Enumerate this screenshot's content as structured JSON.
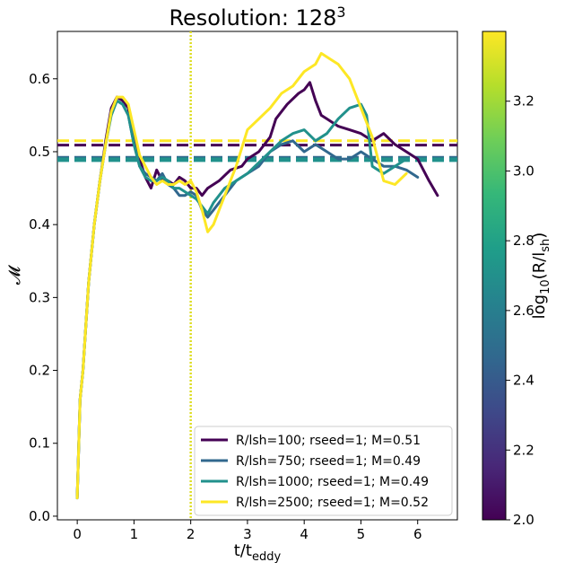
{
  "chart_data": {
    "type": "line",
    "title": "Resolution: 128",
    "title_superscript": "3",
    "xlabel_main": "t/t",
    "xlabel_sub": "eddy",
    "ylabel": "𝓜",
    "xlim": [
      -0.35,
      6.7
    ],
    "ylim": [
      -0.005,
      0.665
    ],
    "xticks": [
      0,
      1,
      2,
      3,
      4,
      5,
      6
    ],
    "yticks": [
      0.0,
      0.1,
      0.2,
      0.3,
      0.4,
      0.5,
      0.6
    ],
    "ytick_labels": [
      "0.0",
      "0.1",
      "0.2",
      "0.3",
      "0.4",
      "0.5",
      "0.6"
    ],
    "vline": {
      "x": 2.0,
      "color": "#dddd22",
      "style": "dotted"
    },
    "legend_position": "lower-right",
    "series": [
      {
        "name": "R/lsh=100; rseed=1; M=0.51",
        "color": "#440154",
        "mean": 0.509,
        "x": [
          0,
          0.05,
          0.1,
          0.2,
          0.3,
          0.4,
          0.5,
          0.6,
          0.7,
          0.8,
          0.9,
          1.0,
          1.1,
          1.2,
          1.3,
          1.4,
          1.5,
          1.6,
          1.7,
          1.8,
          1.9,
          2.0,
          2.1,
          2.2,
          2.3,
          2.5,
          2.7,
          2.9,
          3.0,
          3.2,
          3.4,
          3.5,
          3.7,
          3.9,
          4.0,
          4.1,
          4.2,
          4.3,
          4.4,
          4.5,
          4.6,
          4.8,
          5.0,
          5.2,
          5.4,
          5.6,
          5.8,
          6.0,
          6.2,
          6.35
        ],
        "y": [
          0.025,
          0.16,
          0.2,
          0.32,
          0.4,
          0.46,
          0.515,
          0.56,
          0.575,
          0.57,
          0.56,
          0.52,
          0.49,
          0.465,
          0.45,
          0.475,
          0.46,
          0.46,
          0.455,
          0.465,
          0.46,
          0.45,
          0.45,
          0.44,
          0.45,
          0.46,
          0.475,
          0.48,
          0.49,
          0.5,
          0.52,
          0.545,
          0.565,
          0.58,
          0.585,
          0.595,
          0.57,
          0.55,
          0.545,
          0.54,
          0.535,
          0.53,
          0.525,
          0.515,
          0.525,
          0.51,
          0.5,
          0.49,
          0.46,
          0.44
        ]
      },
      {
        "name": "R/lsh=750; rseed=1; M=0.49",
        "color": "#31688e",
        "mean": 0.491,
        "x": [
          0,
          0.05,
          0.1,
          0.2,
          0.3,
          0.4,
          0.5,
          0.6,
          0.7,
          0.8,
          0.9,
          1.0,
          1.1,
          1.2,
          1.3,
          1.4,
          1.5,
          1.6,
          1.7,
          1.8,
          1.9,
          2.0,
          2.1,
          2.2,
          2.3,
          2.4,
          2.6,
          2.8,
          3.0,
          3.2,
          3.4,
          3.6,
          3.8,
          4.0,
          4.2,
          4.4,
          4.6,
          4.8,
          5.0,
          5.2,
          5.4,
          5.6,
          5.8,
          6.0
        ],
        "y": [
          0.025,
          0.16,
          0.2,
          0.32,
          0.4,
          0.46,
          0.51,
          0.555,
          0.57,
          0.565,
          0.55,
          0.51,
          0.48,
          0.47,
          0.465,
          0.46,
          0.47,
          0.455,
          0.45,
          0.44,
          0.44,
          0.445,
          0.44,
          0.42,
          0.41,
          0.42,
          0.44,
          0.46,
          0.47,
          0.48,
          0.5,
          0.51,
          0.515,
          0.5,
          0.51,
          0.5,
          0.49,
          0.49,
          0.5,
          0.49,
          0.48,
          0.48,
          0.475,
          0.465
        ]
      },
      {
        "name": "R/lsh=1000; rseed=1; M=0.49",
        "color": "#21918c",
        "mean": 0.489,
        "x": [
          0,
          0.05,
          0.1,
          0.2,
          0.3,
          0.4,
          0.5,
          0.6,
          0.7,
          0.8,
          0.9,
          1.0,
          1.1,
          1.2,
          1.3,
          1.4,
          1.5,
          1.6,
          1.7,
          1.8,
          1.9,
          2.0,
          2.1,
          2.2,
          2.3,
          2.4,
          2.6,
          2.8,
          3.0,
          3.2,
          3.4,
          3.6,
          3.8,
          4.0,
          4.2,
          4.4,
          4.6,
          4.8,
          5.0,
          5.1,
          5.2,
          5.4,
          5.6,
          5.8
        ],
        "y": [
          0.025,
          0.16,
          0.2,
          0.32,
          0.4,
          0.46,
          0.51,
          0.55,
          0.57,
          0.565,
          0.55,
          0.51,
          0.48,
          0.465,
          0.46,
          0.46,
          0.465,
          0.46,
          0.45,
          0.45,
          0.445,
          0.44,
          0.435,
          0.425,
          0.415,
          0.43,
          0.45,
          0.46,
          0.47,
          0.485,
          0.5,
          0.515,
          0.525,
          0.53,
          0.515,
          0.525,
          0.545,
          0.56,
          0.565,
          0.55,
          0.48,
          0.47,
          0.48,
          0.49
        ]
      },
      {
        "name": "R/lsh=2500; rseed=1; M=0.52",
        "color": "#fde725",
        "mean": 0.515,
        "x": [
          0,
          0.05,
          0.1,
          0.2,
          0.3,
          0.4,
          0.5,
          0.6,
          0.7,
          0.8,
          0.9,
          1.0,
          1.1,
          1.2,
          1.3,
          1.4,
          1.5,
          1.6,
          1.7,
          1.8,
          1.9,
          2.0,
          2.1,
          2.2,
          2.3,
          2.4,
          2.6,
          2.8,
          3.0,
          3.2,
          3.4,
          3.6,
          3.8,
          4.0,
          4.2,
          4.3,
          4.5,
          4.6,
          4.8,
          5.0,
          5.2,
          5.4,
          5.6,
          5.8
        ],
        "y": [
          0.025,
          0.16,
          0.2,
          0.32,
          0.4,
          0.46,
          0.51,
          0.555,
          0.575,
          0.575,
          0.565,
          0.53,
          0.495,
          0.48,
          0.465,
          0.455,
          0.46,
          0.455,
          0.455,
          0.46,
          0.455,
          0.46,
          0.445,
          0.42,
          0.39,
          0.4,
          0.44,
          0.48,
          0.53,
          0.545,
          0.56,
          0.58,
          0.59,
          0.61,
          0.62,
          0.635,
          0.625,
          0.62,
          0.6,
          0.56,
          0.52,
          0.46,
          0.455,
          0.47
        ]
      }
    ],
    "colorbar": {
      "label_main": "log",
      "label_sub": "10",
      "label_rest_open": "(R/l",
      "label_rest_sub": "sh",
      "label_rest_close": ")",
      "min": 2.0,
      "max": 3.4,
      "ticks": [
        2.0,
        2.2,
        2.4,
        2.6,
        2.8,
        3.0,
        3.2
      ],
      "tick_labels": [
        "2.0",
        "2.2",
        "2.4",
        "2.6",
        "2.8",
        "3.0",
        "3.2"
      ],
      "colormap": [
        "#440154",
        "#482878",
        "#3e4989",
        "#31688e",
        "#26828e",
        "#1f9e89",
        "#35b779",
        "#6ece58",
        "#b5de2b",
        "#fde725"
      ]
    }
  }
}
